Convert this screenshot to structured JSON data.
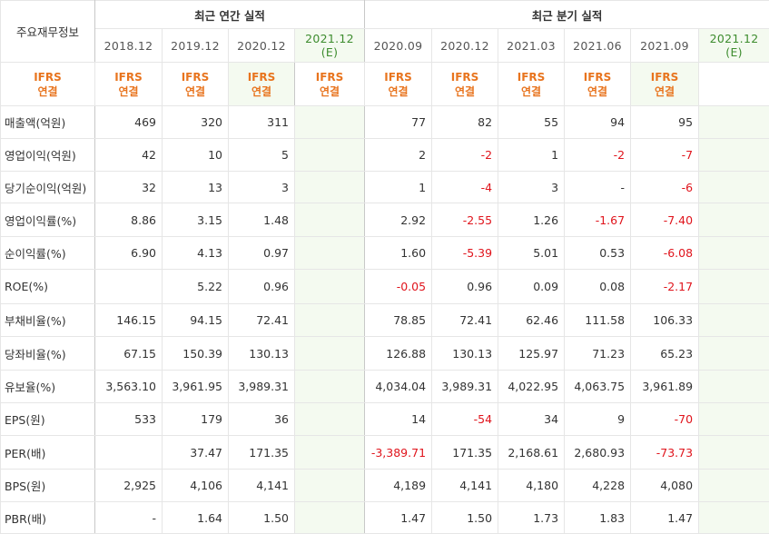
{
  "corner_label": "주요재무정보",
  "annual_group": "최근 연간 실적",
  "quarter_group": "최근 분기 실적",
  "annual_periods": [
    "2018.12",
    "2019.12",
    "2020.12"
  ],
  "annual_estimate": {
    "period": "2021.12",
    "tag": "(E)"
  },
  "quarter_periods": [
    "2020.09",
    "2020.12",
    "2021.03",
    "2021.06",
    "2021.09"
  ],
  "quarter_estimate": {
    "period": "2021.12",
    "tag": "(E)"
  },
  "ifrs": {
    "top": "IFRS",
    "bottom": "연결"
  },
  "rows": [
    {
      "label": "매출액(억원)",
      "annual": [
        "469",
        "320",
        "311"
      ],
      "quarter": [
        "77",
        "82",
        "55",
        "94",
        "95"
      ]
    },
    {
      "label": "영업이익(억원)",
      "annual": [
        "42",
        "10",
        "5"
      ],
      "quarter": [
        "2",
        "-2",
        "1",
        "-2",
        "-7"
      ]
    },
    {
      "label": "당기순이익(억원)",
      "annual": [
        "32",
        "13",
        "3"
      ],
      "quarter": [
        "1",
        "-4",
        "3",
        "-",
        "-6"
      ]
    },
    {
      "label": "영업이익률(%)",
      "annual": [
        "8.86",
        "3.15",
        "1.48"
      ],
      "quarter": [
        "2.92",
        "-2.55",
        "1.26",
        "-1.67",
        "-7.40"
      ]
    },
    {
      "label": "순이익률(%)",
      "annual": [
        "6.90",
        "4.13",
        "0.97"
      ],
      "quarter": [
        "1.60",
        "-5.39",
        "5.01",
        "0.53",
        "-6.08"
      ]
    },
    {
      "label": "ROE(%)",
      "annual": [
        "",
        "5.22",
        "0.96"
      ],
      "quarter": [
        "-0.05",
        "0.96",
        "0.09",
        "0.08",
        "-2.17"
      ]
    },
    {
      "label": "부채비율(%)",
      "annual": [
        "146.15",
        "94.15",
        "72.41"
      ],
      "quarter": [
        "78.85",
        "72.41",
        "62.46",
        "111.58",
        "106.33"
      ]
    },
    {
      "label": "당좌비율(%)",
      "annual": [
        "67.15",
        "150.39",
        "130.13"
      ],
      "quarter": [
        "126.88",
        "130.13",
        "125.97",
        "71.23",
        "65.23"
      ]
    },
    {
      "label": "유보율(%)",
      "annual": [
        "3,563.10",
        "3,961.95",
        "3,989.31"
      ],
      "quarter": [
        "4,034.04",
        "3,989.31",
        "4,022.95",
        "4,063.75",
        "3,961.89"
      ]
    },
    {
      "label": "EPS(원)",
      "annual": [
        "533",
        "179",
        "36"
      ],
      "quarter": [
        "14",
        "-54",
        "34",
        "9",
        "-70"
      ]
    },
    {
      "label": "PER(배)",
      "annual": [
        "",
        "37.47",
        "171.35"
      ],
      "quarter": [
        "-3,389.71",
        "171.35",
        "2,168.61",
        "2,680.93",
        "-73.73"
      ]
    },
    {
      "label": "BPS(원)",
      "annual": [
        "2,925",
        "4,106",
        "4,141"
      ],
      "quarter": [
        "4,189",
        "4,141",
        "4,180",
        "4,228",
        "4,080"
      ]
    },
    {
      "label": "PBR(배)",
      "annual": [
        "-",
        "1.64",
        "1.50"
      ],
      "quarter": [
        "1.47",
        "1.50",
        "1.73",
        "1.83",
        "1.47"
      ]
    }
  ],
  "colors": {
    "negative": "#e0141c",
    "ifrs": "#e8741e",
    "estimate_bg": "#f4faf0",
    "estimate_text": "#3d8c2e"
  }
}
